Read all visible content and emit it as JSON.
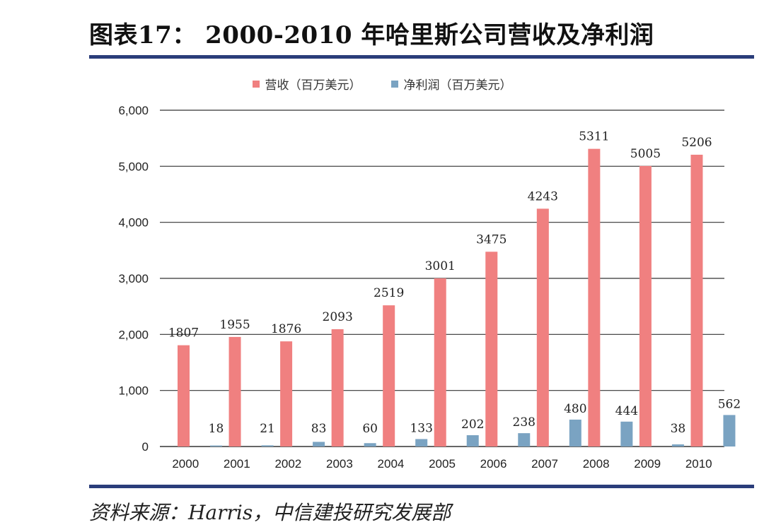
{
  "title": "图表17：  2000-2010 年哈里斯公司营收及净利润",
  "source": "资料来源：Harris，中信建投研究发展部",
  "colors": {
    "revenue": "#f08080",
    "net_profit": "#7aa3c2",
    "rule": "#2a3d7a",
    "grid": "#333333"
  },
  "chart_data": {
    "type": "bar",
    "title": "",
    "xlabel": "",
    "ylabel": "",
    "ylim": [
      0,
      6000
    ],
    "yticks": [
      "0",
      "1,000",
      "2,000",
      "3,000",
      "4,000",
      "5,000",
      "6,000"
    ],
    "grid": true,
    "legend_position": "top-center",
    "categories": [
      "2000",
      "2001",
      "2002",
      "2003",
      "2004",
      "2005",
      "2006",
      "2007",
      "2008",
      "2009",
      "2010"
    ],
    "series": [
      {
        "name": "营收（百万美元）",
        "values": [
          1807,
          1955,
          1876,
          2093,
          2519,
          3001,
          3475,
          4243,
          5311,
          5005,
          5206
        ]
      },
      {
        "name": "净利润（百万美元）",
        "values": [
          18,
          21,
          83,
          60,
          133,
          202,
          238,
          480,
          444,
          38,
          562
        ]
      }
    ]
  }
}
